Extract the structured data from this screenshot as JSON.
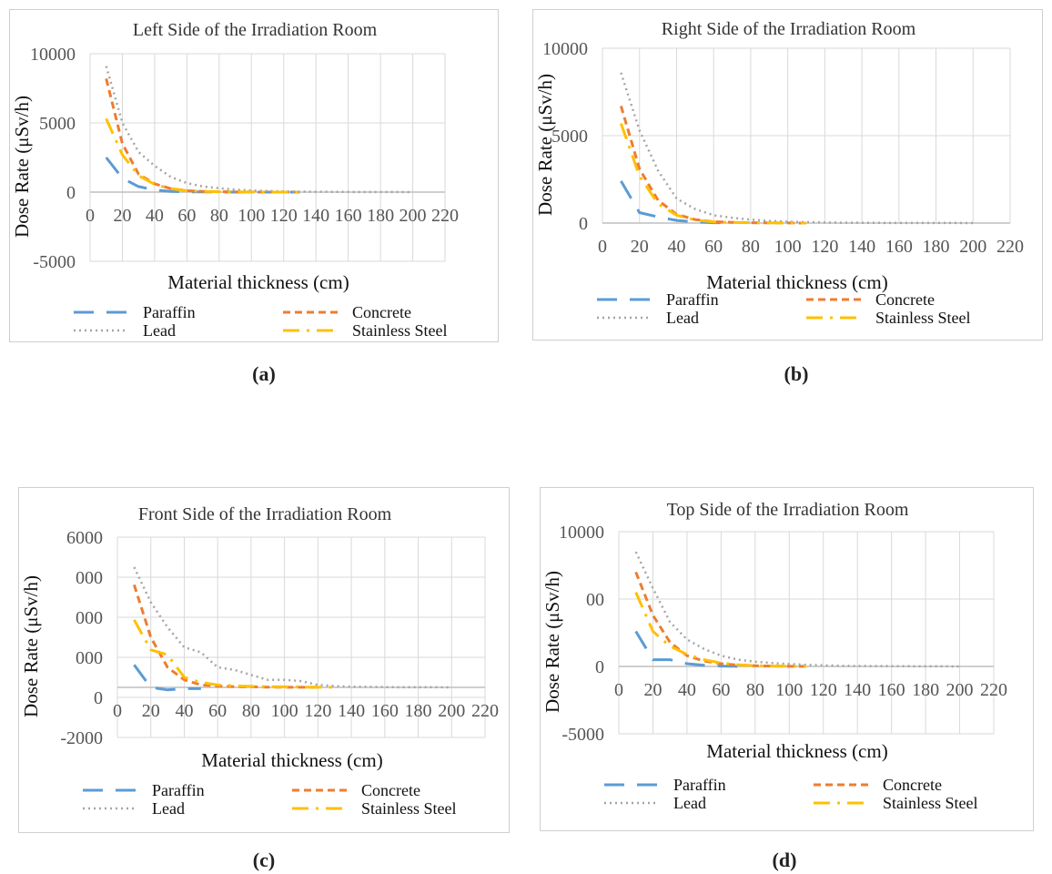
{
  "captions": [
    "(a)",
    "(b)",
    "(c)",
    "(d)"
  ],
  "colors": {
    "paraffin": "#5b9bd5",
    "concrete": "#ed7d31",
    "lead": "#a5a5a5",
    "stainless": "#ffc000",
    "grid": "#d9d9d9",
    "axis": "#bfbfbf"
  },
  "chart_data": [
    {
      "type": "line",
      "title": "Left Side of the Irradiation Room",
      "xlabel": "Material thickness (cm)",
      "ylabel": "Dose Rate (μSv/h)",
      "xlim": [
        0,
        220
      ],
      "ylim": [
        -5000,
        10000
      ],
      "x_ticks": [
        "0",
        "20",
        "40",
        "60",
        "80",
        "100",
        "120",
        "140",
        "160",
        "180",
        "200",
        "220"
      ],
      "y_ticks": [
        "-5000",
        "0",
        "5000",
        "10000"
      ],
      "legend": [
        "Paraffin",
        "Concrete",
        "Lead",
        "Stainless Steel"
      ],
      "series": [
        {
          "name": "Paraffin",
          "x": [
            10,
            20,
            30,
            40,
            50,
            60,
            70,
            80,
            90,
            100,
            110,
            120,
            130
          ],
          "y": [
            2500,
            1000,
            400,
            150,
            50,
            20,
            10,
            5,
            3,
            2,
            1,
            1,
            1
          ]
        },
        {
          "name": "Concrete",
          "x": [
            10,
            20,
            30,
            40,
            50,
            60,
            70,
            80,
            90,
            100,
            110,
            120,
            130
          ],
          "y": [
            8200,
            3500,
            1300,
            600,
            250,
            100,
            50,
            25,
            10,
            5,
            3,
            2,
            1
          ]
        },
        {
          "name": "Lead",
          "x": [
            10,
            20,
            30,
            40,
            50,
            60,
            70,
            80,
            90,
            100,
            110,
            120,
            130,
            140,
            150,
            160,
            170,
            180,
            190,
            200
          ],
          "y": [
            9100,
            5000,
            2900,
            1900,
            1100,
            650,
            400,
            280,
            180,
            120,
            80,
            50,
            35,
            25,
            18,
            12,
            8,
            6,
            4,
            3
          ]
        },
        {
          "name": "Stainless Steel",
          "x": [
            10,
            20,
            30,
            40,
            50,
            60,
            70,
            80,
            90,
            100,
            110,
            120,
            130
          ],
          "y": [
            5300,
            2700,
            1200,
            550,
            250,
            100,
            50,
            25,
            10,
            5,
            3,
            2,
            1
          ]
        }
      ]
    },
    {
      "type": "line",
      "title": "Right Side of the Irradiation Room",
      "xlabel": "Material thickness (cm)",
      "ylabel": "Dose Rate (μSv/h)",
      "xlim": [
        0,
        220
      ],
      "ylim": [
        0,
        10000
      ],
      "x_ticks": [
        "0",
        "20",
        "40",
        "60",
        "80",
        "100",
        "120",
        "140",
        "160",
        "180",
        "200",
        "220"
      ],
      "y_ticks": [
        "0",
        "5000",
        "10000"
      ],
      "legend": [
        "Paraffin",
        "Concrete",
        "Lead",
        "Stainless Steel"
      ],
      "series": [
        {
          "name": "Paraffin",
          "x": [
            10,
            20,
            30,
            40,
            50,
            60,
            70
          ],
          "y": [
            2400,
            600,
            350,
            150,
            60,
            20,
            10
          ]
        },
        {
          "name": "Concrete",
          "x": [
            10,
            20,
            30,
            40,
            50,
            60,
            70,
            80,
            90,
            100,
            110
          ],
          "y": [
            6700,
            3100,
            1300,
            500,
            200,
            80,
            40,
            20,
            10,
            5,
            2
          ]
        },
        {
          "name": "Lead",
          "x": [
            10,
            20,
            30,
            40,
            50,
            60,
            70,
            80,
            90,
            100,
            110,
            120,
            130,
            140,
            150,
            160,
            170,
            180,
            190,
            200
          ],
          "y": [
            8600,
            5300,
            3000,
            1400,
            800,
            450,
            300,
            200,
            120,
            80,
            50,
            30,
            20,
            15,
            10,
            7,
            5,
            4,
            3,
            2
          ]
        },
        {
          "name": "Stainless Steel",
          "x": [
            10,
            20,
            30,
            40,
            50,
            60,
            70,
            80,
            90,
            100,
            110
          ],
          "y": [
            5700,
            2700,
            1100,
            450,
            180,
            70,
            30,
            15,
            8,
            4,
            2
          ]
        }
      ]
    },
    {
      "type": "line",
      "title": "Front Side of the Irradiation Room",
      "xlabel": "Material thickness (cm)",
      "ylabel": "Dose Rate (μSv/h)",
      "xlim": [
        0,
        220
      ],
      "ylim": [
        -2000,
        6000
      ],
      "x_ticks": [
        "0",
        "20",
        "40",
        "60",
        "80",
        "100",
        "120",
        "140",
        "160",
        "180",
        "200",
        "220"
      ],
      "y_ticks": [
        "-2000",
        "0",
        "000",
        "000",
        "000",
        "6000"
      ],
      "legend": [
        "Paraffin",
        "Concrete",
        "Lead",
        "Stainless Steel"
      ],
      "series": [
        {
          "name": "Paraffin",
          "x": [
            10,
            20,
            30,
            40,
            50
          ],
          "y": [
            900,
            0,
            -100,
            -50,
            -50
          ]
        },
        {
          "name": "Concrete",
          "x": [
            10,
            20,
            30,
            40,
            50,
            60,
            70,
            80,
            90,
            100,
            110,
            120
          ],
          "y": [
            4100,
            2000,
            800,
            300,
            100,
            50,
            30,
            20,
            10,
            5,
            3,
            2
          ]
        },
        {
          "name": "Lead",
          "x": [
            10,
            20,
            30,
            40,
            50,
            60,
            70,
            80,
            90,
            100,
            110,
            120,
            130,
            140,
            150,
            160,
            170,
            180,
            190,
            200
          ],
          "y": [
            4800,
            3400,
            2400,
            1600,
            1400,
            800,
            700,
            500,
            300,
            300,
            250,
            100,
            50,
            30,
            20,
            10,
            5,
            3,
            2,
            1
          ]
        },
        {
          "name": "Stainless Steel",
          "x": [
            10,
            20,
            30,
            40,
            50,
            60,
            70,
            80,
            90,
            100,
            110,
            120,
            130
          ],
          "y": [
            2700,
            1500,
            1300,
            400,
            200,
            100,
            60,
            40,
            30,
            20,
            10,
            5,
            3
          ]
        }
      ]
    },
    {
      "type": "line",
      "title": "Top Side of the Irradiation Room",
      "xlabel": "Material thickness (cm)",
      "ylabel": "Dose Rate (μSv/h)",
      "xlim": [
        0,
        220
      ],
      "ylim": [
        -5000,
        10000
      ],
      "x_ticks": [
        "0",
        "20",
        "40",
        "60",
        "80",
        "100",
        "120",
        "140",
        "160",
        "180",
        "200",
        "220"
      ],
      "y_ticks": [
        "-5000",
        "0",
        "00",
        "10000"
      ],
      "legend": [
        "Paraffin",
        "Concrete",
        "Lead",
        "Stainless Steel"
      ],
      "series": [
        {
          "name": "Paraffin",
          "x": [
            10,
            20,
            30,
            40,
            50,
            60,
            70
          ],
          "y": [
            2600,
            500,
            500,
            200,
            80,
            30,
            10
          ]
        },
        {
          "name": "Concrete",
          "x": [
            10,
            20,
            30,
            40,
            50,
            60,
            70,
            80,
            90,
            100,
            110
          ],
          "y": [
            7000,
            3800,
            1800,
            800,
            400,
            200,
            100,
            50,
            25,
            10,
            5
          ]
        },
        {
          "name": "Lead",
          "x": [
            10,
            20,
            30,
            40,
            50,
            60,
            70,
            80,
            90,
            100,
            110,
            120,
            130,
            140,
            150,
            160,
            170,
            180,
            190,
            200
          ],
          "y": [
            8500,
            5800,
            3300,
            2000,
            1300,
            800,
            500,
            350,
            250,
            180,
            120,
            80,
            50,
            35,
            25,
            18,
            12,
            8,
            5,
            3
          ]
        },
        {
          "name": "Stainless Steel",
          "x": [
            10,
            20,
            30,
            40,
            50,
            60,
            70,
            80,
            90,
            100,
            110
          ],
          "y": [
            5500,
            2600,
            1500,
            900,
            500,
            250,
            120,
            60,
            30,
            15,
            8
          ]
        }
      ]
    }
  ]
}
